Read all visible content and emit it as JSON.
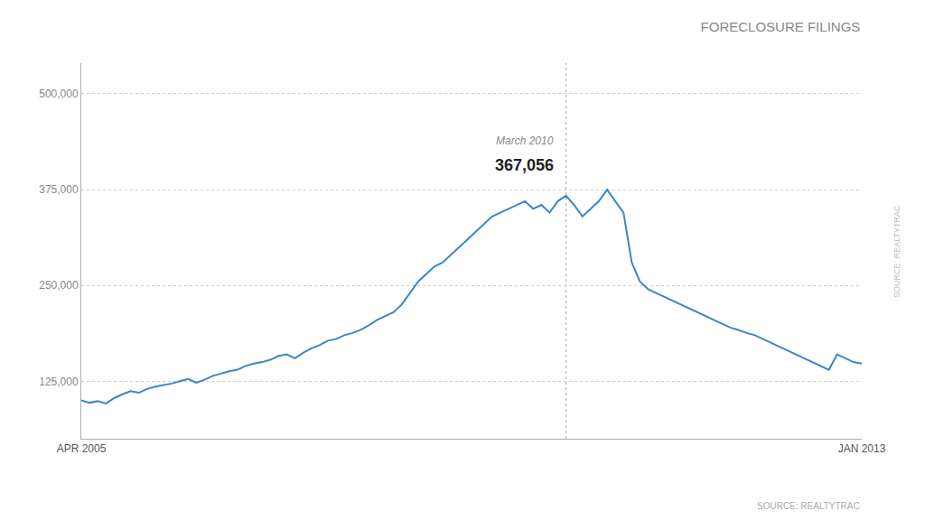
{
  "chart_data": {
    "type": "line",
    "title": "FORECLOSURE FILINGS",
    "source": "SOURCE: REALTYTRAC",
    "categories": [
      "APR 2005",
      null,
      null,
      null,
      null,
      null,
      null,
      null,
      null,
      null,
      null,
      null,
      null,
      null,
      null,
      null,
      null,
      null,
      null,
      null,
      null,
      null,
      null,
      null,
      null,
      null,
      null,
      null,
      null,
      null,
      null,
      null,
      null,
      null,
      null,
      null,
      null,
      null,
      null,
      null,
      null,
      null,
      null,
      null,
      null,
      null,
      null,
      null,
      null,
      null,
      null,
      null,
      null,
      null,
      null,
      null,
      null,
      null,
      null,
      null,
      null,
      null,
      null,
      null,
      null,
      null,
      null,
      null,
      null,
      null,
      null,
      null,
      null,
      null,
      null,
      null,
      null,
      null,
      null,
      null,
      null,
      null,
      null,
      null,
      null,
      null,
      null,
      null,
      null,
      null,
      null,
      null,
      null,
      null,
      null,
      "JAN 2013"
    ],
    "values": [
      100000,
      97000,
      99000,
      96000,
      103000,
      108000,
      112000,
      110000,
      115000,
      118000,
      120000,
      122000,
      125000,
      128000,
      123000,
      127000,
      132000,
      135000,
      138000,
      140000,
      145000,
      148000,
      150000,
      153000,
      158000,
      160000,
      155000,
      162000,
      168000,
      172000,
      178000,
      180000,
      185000,
      188000,
      192000,
      198000,
      205000,
      210000,
      215000,
      225000,
      240000,
      255000,
      265000,
      275000,
      280000,
      290000,
      300000,
      310000,
      320000,
      330000,
      340000,
      345000,
      350000,
      355000,
      360000,
      350000,
      355000,
      345000,
      360000,
      367056,
      355000,
      340000,
      350000,
      360000,
      375000,
      360000,
      345000,
      280000,
      255000,
      245000,
      240000,
      235000,
      230000,
      225000,
      220000,
      215000,
      210000,
      205000,
      200000,
      195000,
      192000,
      188000,
      185000,
      180000,
      175000,
      170000,
      165000,
      160000,
      155000,
      150000,
      145000,
      140000,
      160000,
      155000,
      150000,
      148000
    ],
    "color": "#3a87c8",
    "ylim": [
      50000,
      540000
    ],
    "yticks": [
      {
        "value": 125000,
        "label": "125,000"
      },
      {
        "value": 250000,
        "label": "250,000"
      },
      {
        "value": 375000,
        "label": "375,000"
      },
      {
        "value": 500000,
        "label": "500,000"
      }
    ],
    "grid": true,
    "annotations": [
      {
        "text": "March 2010",
        "index": 59,
        "value": 367056
      },
      {
        "text": "367,056",
        "index": 59,
        "value": 367056
      }
    ]
  }
}
